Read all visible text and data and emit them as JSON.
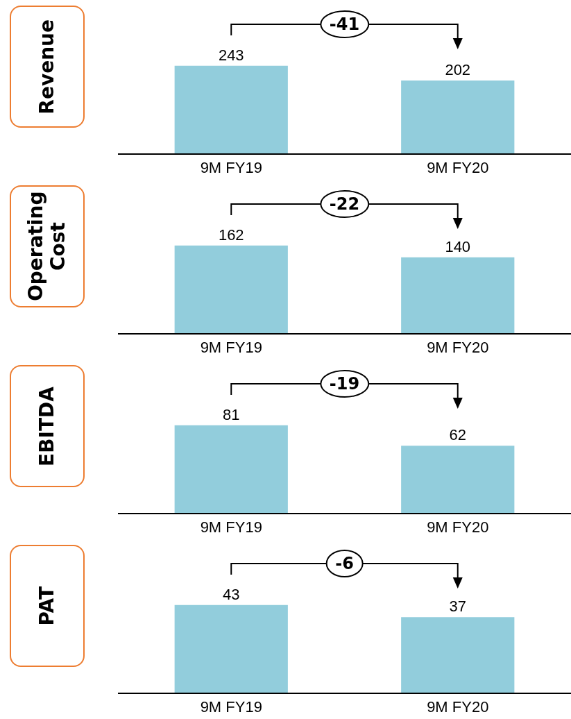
{
  "chart_data": [
    {
      "type": "bar",
      "ylabel": "Revenue",
      "categories": [
        "9M FY19",
        "9M FY20"
      ],
      "values": [
        243,
        202
      ],
      "color": "#92cddc",
      "data_labels": true,
      "annotations": [
        "-41"
      ]
    },
    {
      "type": "bar",
      "ylabel": "Operating Cost",
      "categories": [
        "9M FY19",
        "9M FY20"
      ],
      "values": [
        162,
        140
      ],
      "color": "#92cddc",
      "data_labels": true,
      "annotations": [
        "-22"
      ]
    },
    {
      "type": "bar",
      "ylabel": "EBITDA",
      "categories": [
        "9M FY19",
        "9M FY20"
      ],
      "values": [
        81,
        62
      ],
      "color": "#92cddc",
      "data_labels": true,
      "annotations": [
        "-19"
      ]
    },
    {
      "type": "bar",
      "ylabel": "PAT",
      "categories": [
        "9M FY19",
        "9M FY20"
      ],
      "values": [
        43,
        37
      ],
      "color": "#92cddc",
      "data_labels": true,
      "annotations": [
        "-6"
      ]
    }
  ]
}
